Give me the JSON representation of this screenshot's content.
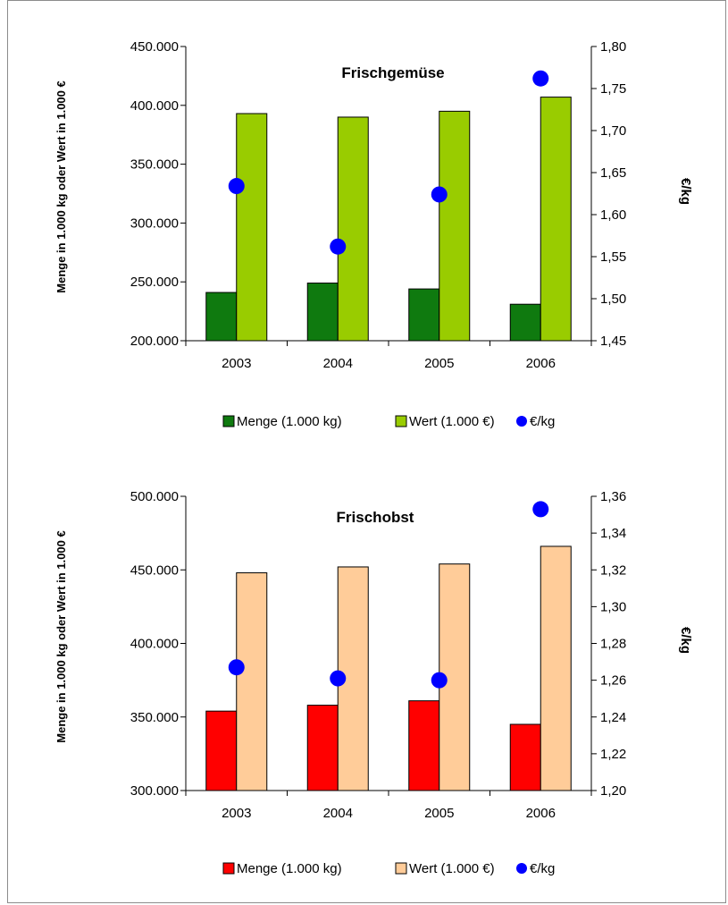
{
  "chart_data": [
    {
      "type": "bar",
      "title": "Frischgemüse",
      "title_color": "#1e8a1e",
      "categories": [
        "2003",
        "2004",
        "2005",
        "2006"
      ],
      "ylabel": "Menge in 1.000 kg oder Wert in 1.000 €",
      "y2label": "€/kg",
      "ylim": [
        200000,
        450000
      ],
      "yticks": [
        "200.000",
        "250.000",
        "300.000",
        "350.000",
        "400.000",
        "450.000"
      ],
      "y2lim": [
        1.45,
        1.8
      ],
      "y2ticks": [
        "1,45",
        "1,50",
        "1,55",
        "1,60",
        "1,65",
        "1,70",
        "1,75",
        "1,80"
      ],
      "series": [
        {
          "name": "Menge (1.000 kg)",
          "axis": "left",
          "kind": "bar",
          "color": "#0f7a0f",
          "values": [
            241000,
            249000,
            244000,
            231000
          ]
        },
        {
          "name": "Wert (1.000 €)",
          "axis": "left",
          "kind": "bar",
          "color": "#99cc00",
          "values": [
            393000,
            390000,
            395000,
            407000
          ]
        },
        {
          "name": "€/kg",
          "axis": "right",
          "kind": "point",
          "color": "#0000ff",
          "values": [
            1.634,
            1.562,
            1.624,
            1.762
          ]
        }
      ],
      "legend_position": "bottom",
      "grid": false
    },
    {
      "type": "bar",
      "title": "Frischobst",
      "title_color": "#ff0000",
      "categories": [
        "2003",
        "2004",
        "2005",
        "2006"
      ],
      "ylabel": "Menge in 1.000 kg oder Wert in 1.000 €",
      "y2label": "€/kg",
      "ylim": [
        300000,
        500000
      ],
      "yticks": [
        "300.000",
        "350.000",
        "400.000",
        "450.000",
        "500.000"
      ],
      "y2lim": [
        1.2,
        1.36
      ],
      "y2ticks": [
        "1,20",
        "1,22",
        "1,24",
        "1,26",
        "1,28",
        "1,30",
        "1,32",
        "1,34",
        "1,36"
      ],
      "series": [
        {
          "name": "Menge (1.000 kg)",
          "axis": "left",
          "kind": "bar",
          "color": "#ff0000",
          "values": [
            354000,
            358000,
            361000,
            345000
          ]
        },
        {
          "name": "Wert (1.000 €)",
          "axis": "left",
          "kind": "bar",
          "color": "#ffcc99",
          "values": [
            448000,
            452000,
            454000,
            466000
          ]
        },
        {
          "name": "€/kg",
          "axis": "right",
          "kind": "point",
          "color": "#0000ff",
          "values": [
            1.267,
            1.261,
            1.26,
            1.353
          ]
        }
      ],
      "legend_position": "bottom",
      "grid": false
    }
  ]
}
